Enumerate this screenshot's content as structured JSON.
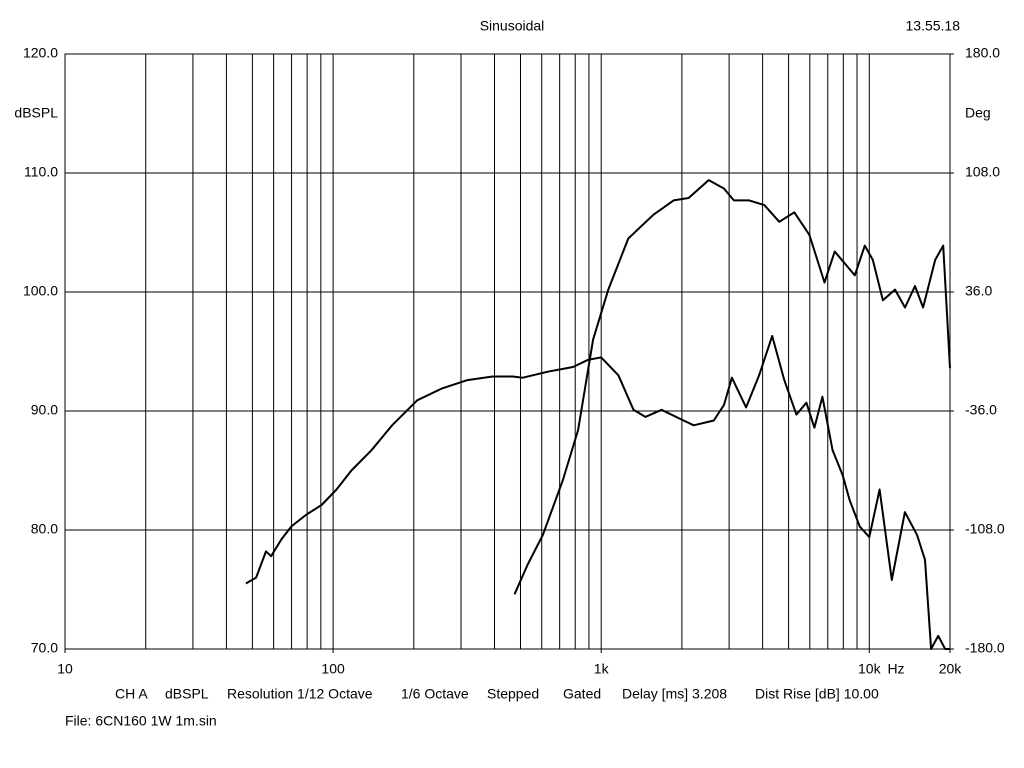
{
  "chart_data": {
    "type": "line",
    "title": "Sinusoidal",
    "timestamp": "13.55.18",
    "ylabel": "dBSPL",
    "y2label": "Deg",
    "xunit": "Hz",
    "xlog": true,
    "grid": true,
    "xlim": [
      10,
      20000
    ],
    "xticks": [
      10,
      100,
      {
        "value": 1000,
        "label": "1k"
      },
      {
        "value": 10000,
        "label": "10k"
      },
      {
        "value": 20000,
        "label": "20k"
      }
    ],
    "xgrid": [
      20,
      30,
      40,
      50,
      60,
      70,
      80,
      90,
      100,
      200,
      300,
      400,
      500,
      600,
      700,
      800,
      900,
      1000,
      2000,
      3000,
      4000,
      5000,
      6000,
      7000,
      8000,
      9000,
      10000
    ],
    "ylim": [
      70,
      120
    ],
    "yticks": [
      {
        "value": 70,
        "label": "70.0"
      },
      {
        "value": 80,
        "label": "80.0"
      },
      {
        "value": 90,
        "label": "90.0"
      },
      {
        "value": 100,
        "label": "100.0"
      },
      {
        "value": 110,
        "label": "110.0"
      },
      {
        "value": 120,
        "label": "120.0"
      }
    ],
    "y2lim": [
      -180,
      180
    ],
    "y2ticks": [
      {
        "value": -180,
        "label": "-180.0"
      },
      {
        "value": -108,
        "label": "-108.0"
      },
      {
        "value": -36,
        "label": "-36.0"
      },
      {
        "value": 36,
        "label": "36.0"
      },
      {
        "value": 108,
        "label": "108.0"
      },
      {
        "value": 180,
        "label": "180.0"
      }
    ],
    "series": [
      {
        "color": "#000000",
        "x": [
          47.3,
          51.6,
          56.2,
          58.7,
          64.1,
          69.9,
          79.6,
          90.6,
          103,
          117,
          139,
          166,
          206,
          255,
          317,
          393,
          468,
          510,
          632,
          785,
          894,
          1000,
          1159,
          1320,
          1462,
          1680,
          1944,
          2214,
          2631,
          2869,
          3073,
          3470,
          3882,
          4345,
          4820,
          5346,
          5825,
          6240,
          6687,
          7294,
          7956,
          8450,
          9210,
          10000,
          10930,
          12130,
          13580,
          15060,
          16130,
          17000,
          18070,
          19190,
          20000
        ],
        "values": [
          75.5,
          76.0,
          78.2,
          77.8,
          79.2,
          80.3,
          81.3,
          82.1,
          83.4,
          85.0,
          86.7,
          88.8,
          90.9,
          91.9,
          92.6,
          92.9,
          92.9,
          92.8,
          93.3,
          93.7,
          94.3,
          94.5,
          93.0,
          90.1,
          89.5,
          90.1,
          89.4,
          88.8,
          89.2,
          90.5,
          92.8,
          90.3,
          93.0,
          96.3,
          92.6,
          89.7,
          90.7,
          88.6,
          91.2,
          86.7,
          84.6,
          82.5,
          80.3,
          79.4,
          83.4,
          75.8,
          81.5,
          79.6,
          77.5,
          70.0,
          71.1,
          70.0,
          70.0
        ]
      },
      {
        "color": "#000000",
        "x": [
          475,
          532,
          606,
          720,
          820,
          933,
          1063,
          1262,
          1567,
          1862,
          2118,
          2518,
          2869,
          3127,
          3565,
          4057,
          4617,
          5250,
          5979,
          6805,
          7431,
          8826,
          9620,
          10310,
          11240,
          12470,
          13590,
          14810,
          15870,
          17610,
          18870,
          20000
        ],
        "values": [
          74.6,
          77.1,
          79.6,
          84.2,
          88.4,
          96.0,
          100.2,
          104.5,
          106.5,
          107.7,
          107.9,
          109.4,
          108.7,
          107.7,
          107.7,
          107.3,
          105.9,
          106.7,
          104.8,
          100.8,
          103.4,
          101.4,
          103.9,
          102.7,
          99.3,
          100.2,
          98.7,
          100.5,
          98.7,
          102.7,
          103.9,
          93.6
        ]
      }
    ],
    "footer": [
      "CH A",
      "dBSPL",
      "Resolution 1/12 Octave",
      "1/6 Octave",
      "Stepped",
      "Gated",
      "Delay [ms] 3.208",
      "Dist Rise [dB] 10.00"
    ],
    "file": "File: 6CN160 1W 1m.sin"
  }
}
